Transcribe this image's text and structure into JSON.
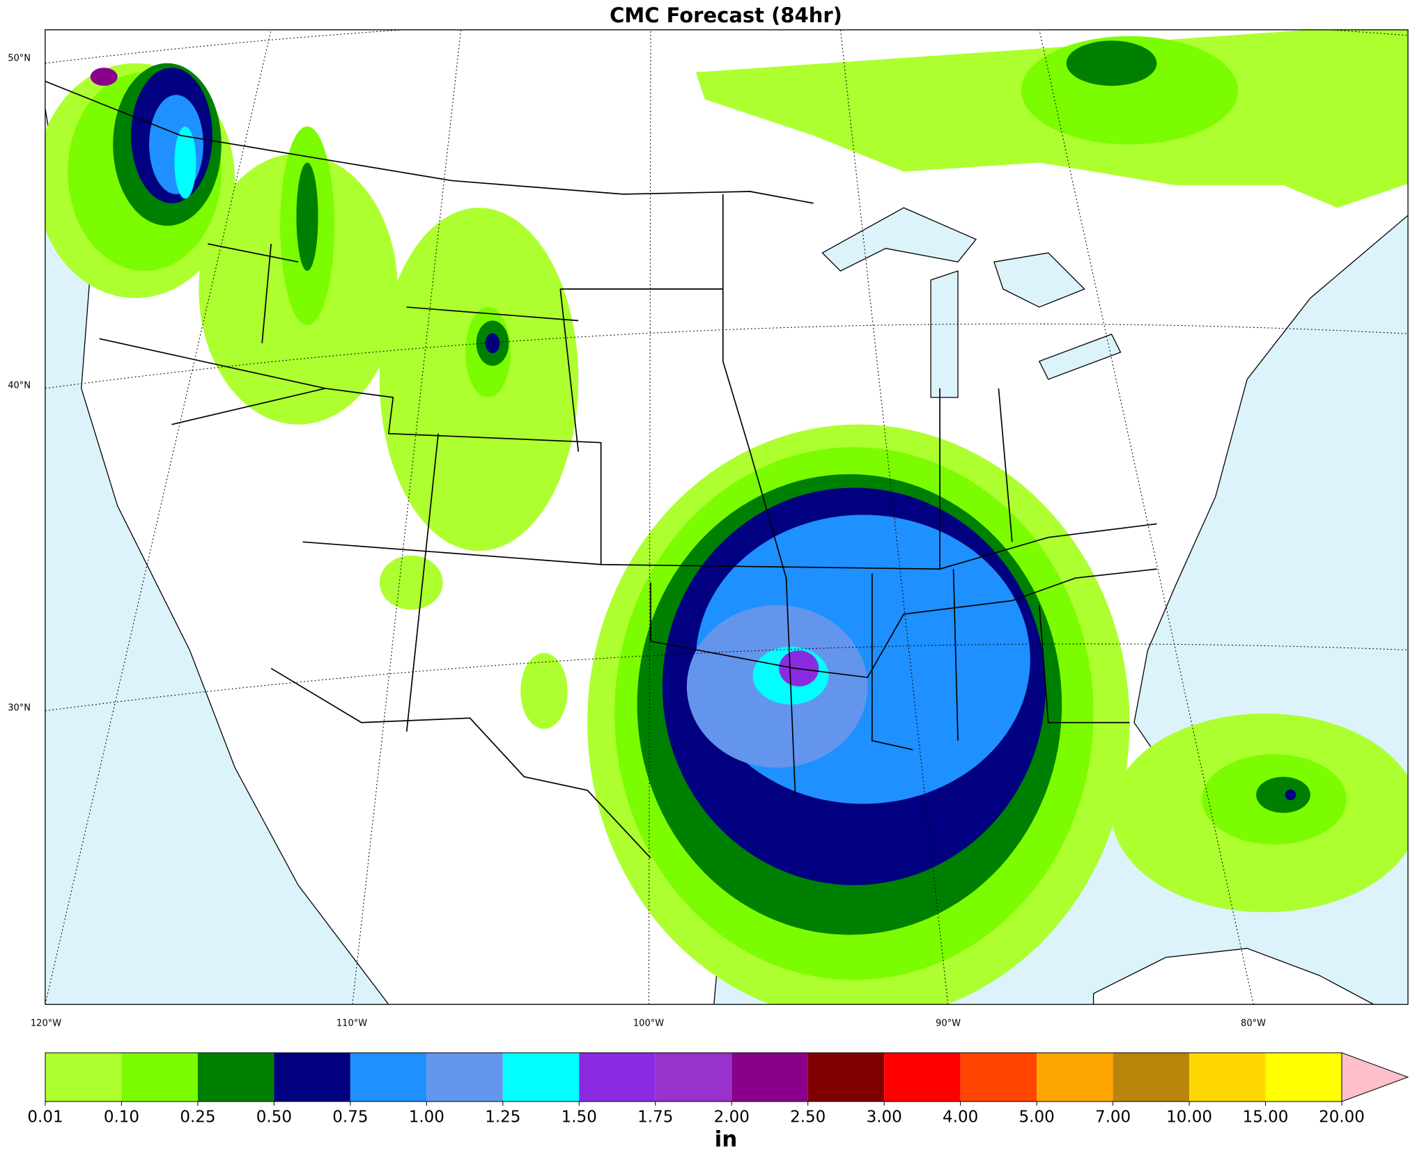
{
  "title": "CMC Forecast (84hr)",
  "graticule": {
    "lat_labels": [
      "50°N",
      "40°N",
      "30°N"
    ],
    "lon_labels": [
      "120°W",
      "110°W",
      "100°W",
      "90°W",
      "80°W"
    ]
  },
  "colorbar": {
    "label": "in",
    "levels": [
      {
        "value": 0.01,
        "label": "0.01"
      },
      {
        "value": 0.1,
        "label": "0.10"
      },
      {
        "value": 0.25,
        "label": "0.25"
      },
      {
        "value": 0.5,
        "label": "0.50"
      },
      {
        "value": 0.75,
        "label": "0.75"
      },
      {
        "value": 1,
        "label": "1.00"
      },
      {
        "value": 1.25,
        "label": "1.25"
      },
      {
        "value": 1.5,
        "label": "1.50"
      },
      {
        "value": 1.75,
        "label": "1.75"
      },
      {
        "value": 2,
        "label": "2.00"
      },
      {
        "value": 2.5,
        "label": "2.50"
      },
      {
        "value": 3,
        "label": "3.00"
      },
      {
        "value": 4,
        "label": "4.00"
      },
      {
        "value": 5,
        "label": "5.00"
      },
      {
        "value": 7,
        "label": "7.00"
      },
      {
        "value": 10,
        "label": "10.00"
      },
      {
        "value": 15,
        "label": "15.00"
      },
      {
        "value": 20,
        "label": "20.00"
      }
    ],
    "colors": [
      "#adff2f",
      "#7cfc00",
      "#008000",
      "#000080",
      "#1e90ff",
      "#6495ed",
      "#00ffff",
      "#8a2be2",
      "#9932cc",
      "#8b008b",
      "#800000",
      "#ff0000",
      "#ff4500",
      "#ffa500",
      "#b8860b",
      "#ffd700",
      "#ffff00"
    ],
    "extend_color": "#ffc0cb"
  }
}
